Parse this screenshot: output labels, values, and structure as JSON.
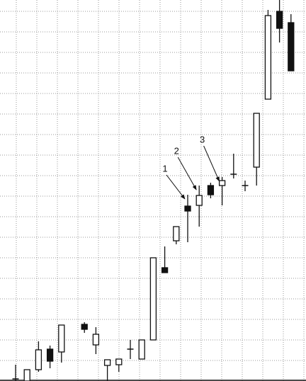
{
  "chart_data": {
    "type": "candlestick",
    "categories": [
      null,
      null,
      null,
      null,
      null,
      null,
      null,
      null,
      null,
      null,
      null,
      null,
      null,
      null,
      null,
      null,
      null,
      null,
      null,
      null,
      null,
      null,
      null,
      null,
      null
    ],
    "open": [
      3,
      0,
      16,
      45,
      41,
      null,
      80,
      51,
      22,
      23,
      45,
      31,
      58,
      160,
      198,
      247,
      248,
      276,
      276,
      292,
      276,
      302,
      398,
      522,
      506
    ],
    "high": [
      23,
      16,
      56,
      50,
      79,
      null,
      83,
      76,
      30,
      31,
      58,
      58,
      174,
      190,
      218,
      263,
      276,
      280,
      288,
      321,
      283,
      378,
      524,
      538,
      518
    ],
    "low": [
      0,
      0,
      13,
      18,
      26,
      null,
      68,
      38,
      0,
      13,
      31,
      31,
      58,
      153,
      193,
      196,
      218,
      258,
      248,
      286,
      268,
      276,
      398,
      478,
      438
    ],
    "close": [
      3,
      16,
      44,
      28,
      79,
      null,
      73,
      66,
      30,
      31,
      45,
      58,
      174,
      153,
      218,
      240,
      262,
      263,
      283,
      292,
      276,
      378,
      516,
      498,
      438
    ],
    "up_color": "#ffffff",
    "down_color": "#111111",
    "ylim": [
      0,
      538
    ],
    "yticks": [
      29,
      58,
      87,
      116,
      145,
      174,
      203,
      232,
      261,
      290,
      319,
      348,
      377,
      406,
      435,
      464,
      493,
      522
    ],
    "grid": true,
    "annotations": [
      {
        "text": "1",
        "target": 15
      },
      {
        "text": "2",
        "target": 16
      },
      {
        "text": "3",
        "target": 18
      }
    ]
  }
}
